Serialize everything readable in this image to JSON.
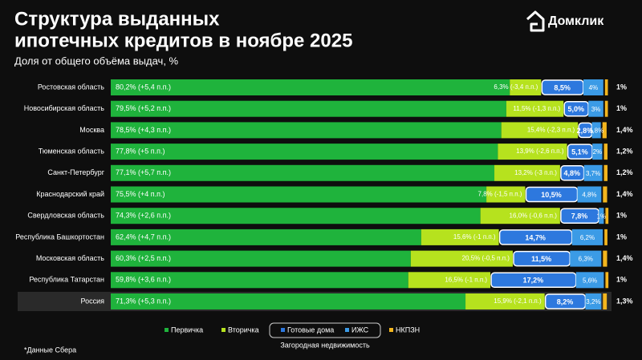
{
  "chart_data": {
    "type": "stacked-bar-horizontal",
    "title": [
      "Структура выданных",
      "ипотечных кредитов в ноябре 2025"
    ],
    "subtitle": "Доля от общего объёма выдач, %",
    "brand": "Домклик",
    "footnote": "*Данные Сбера",
    "legend_group_label": "Загородная недвижимость",
    "highlight_category": "Россия",
    "categories": [
      "Ростовская область",
      "Новосибирская область",
      "Москва",
      "Тюменская область",
      "Санкт-Петербург",
      "Краснодарский край",
      "Свердловская область",
      "Республика Башкортостан",
      "Московская область",
      "Республика Татарстан",
      "Россия"
    ],
    "series": [
      {
        "name": "Первичка",
        "color": "#1fb33c",
        "values": [
          80.2,
          79.5,
          78.5,
          77.8,
          77.1,
          75.5,
          74.3,
          62.4,
          60.3,
          59.8,
          71.3
        ],
        "value_labels": [
          "80,2% (+5,4 п.п.)",
          "79,5% (+5,2 п.п.)",
          "78,5% (+4,3 п.п.)",
          "77,8% (+5 п.п.)",
          "77,1% (+5,7 п.п.)",
          "75,5% (+4 п.п.)",
          "74,3% (+2,6 п.п.)",
          "62,4% (+4,7 п.п.)",
          "60,3% (+2,5 п.п.)",
          "59,8% (+3,6 п.п.)",
          "71,3% (+5,3 п.п.)"
        ]
      },
      {
        "name": "Вторичка",
        "color": "#b6e21e",
        "values": [
          6.3,
          11.5,
          15.4,
          13.9,
          13.2,
          7.8,
          16.0,
          15.6,
          20.5,
          16.5,
          15.9
        ],
        "value_labels": [
          "6,3% (-3,4 п.п.)",
          "11,5% (-1,3 п.п.)",
          "15,4% (-2,3 п.п.)",
          "13,9% (-2,6 п.п.)",
          "13,2% (-3 п.п.)",
          "7,8% (-1,5 п.п.)",
          "16,0% (-0,6 п.п.)",
          "15,6% (-1 п.п.)",
          "20,5% (-0,5 п.п.)",
          "16,5% (-1 п.п.)",
          "15,9% (-2,1 п.п.)"
        ]
      },
      {
        "name": "Готовые дома",
        "color": "#2d78de",
        "values": [
          8.5,
          5.0,
          2.8,
          5.1,
          4.8,
          10.5,
          7.8,
          14.7,
          11.5,
          17.2,
          8.2
        ],
        "value_labels": [
          "8,5%",
          "5,0%",
          "2,8%",
          "5,1%",
          "4,8%",
          "10,5%",
          "7,8%",
          "14,7%",
          "11,5%",
          "17,2%",
          "8,2%"
        ]
      },
      {
        "name": "ИЖС",
        "color": "#3b9be6",
        "values": [
          4,
          3,
          1.8,
          2,
          3.7,
          4.8,
          1,
          6.2,
          6.3,
          5.6,
          3.2
        ],
        "value_labels": [
          "4%",
          "3%",
          "1,8%",
          "2%",
          "3,7%",
          "4,8%",
          "1%",
          "6,2%",
          "6,3%",
          "5,6%",
          "3,2%"
        ]
      },
      {
        "name": "НКПЗН",
        "color": "#f2b51e",
        "values": [
          1,
          1,
          1.4,
          1.2,
          1.2,
          1.4,
          1,
          1,
          1.4,
          1,
          1.3
        ],
        "value_labels": [
          "1%",
          "1%",
          "1,4%",
          "1,2%",
          "1,2%",
          "1,4%",
          "1%",
          "1%",
          "1,4%",
          "1%",
          "1,3%"
        ]
      }
    ]
  }
}
